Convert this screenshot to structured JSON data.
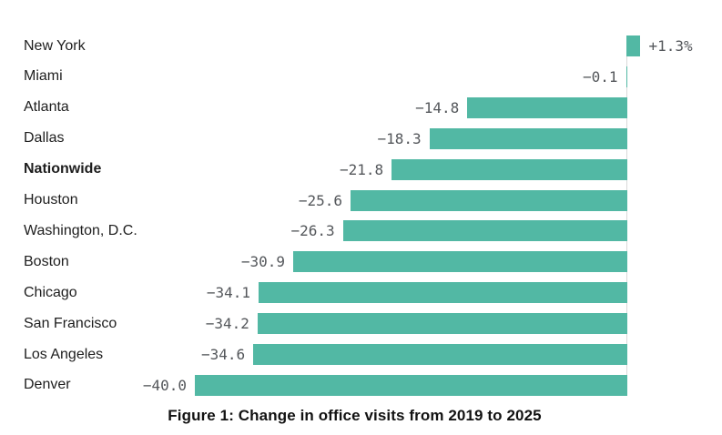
{
  "figure": {
    "caption": "Figure 1: Change in office visits from 2019 to 2025"
  },
  "colors": {
    "bar": "#52b8a4",
    "axis_line": "#d9d9d9",
    "value_label": "#54575b",
    "category_label": "#1e1e1e",
    "caption_text": "#121212",
    "background": "#ffffff"
  },
  "chart_data": {
    "type": "bar",
    "orientation": "horizontal",
    "title": "",
    "xlabel": "",
    "ylabel": "",
    "caption": "Figure 1: Change in office visits from 2019 to 2025",
    "unit": "percent change",
    "grid": false,
    "legend": false,
    "baseline_value": 0,
    "xlim": [
      -40.0,
      1.3
    ],
    "categories": [
      "New York",
      "Miami",
      "Atlanta",
      "Dallas",
      "Nationwide",
      "Houston",
      "Washington, D.C.",
      "Boston",
      "Chicago",
      "San Francisco",
      "Los Angeles",
      "Denver"
    ],
    "values": [
      1.3,
      -0.1,
      -14.8,
      -18.3,
      -21.8,
      -25.6,
      -26.3,
      -30.9,
      -34.1,
      -34.2,
      -34.6,
      -40.0
    ],
    "value_labels": [
      "+1.3%",
      "−0.1",
      "−14.8",
      "−18.3",
      "−21.8",
      "−25.6",
      "−26.3",
      "−30.9",
      "−34.1",
      "−34.2",
      "−34.6",
      "−40.0"
    ],
    "emphasized_category": "Nationwide",
    "bar_color": "#52b8a4"
  }
}
